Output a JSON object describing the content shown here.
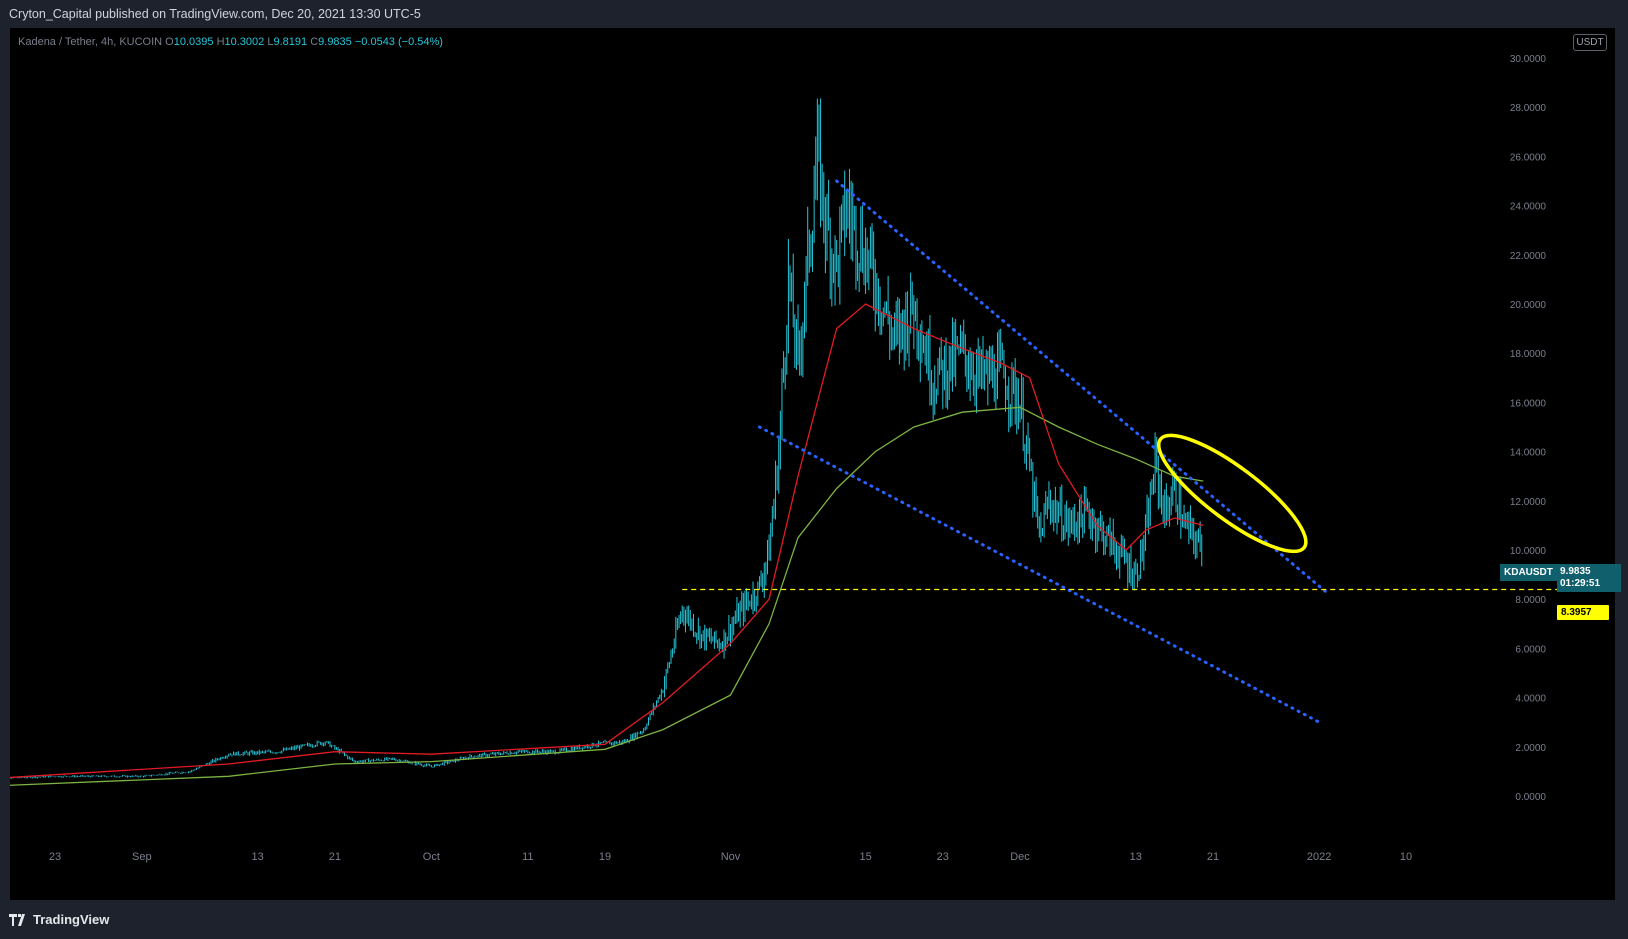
{
  "header": {
    "publisher_line": "Cryton_Capital published on TradingView.com, Dec 20, 2021 13:30 UTC-5"
  },
  "legend": {
    "symbol_desc": "Kadena / Tether, 4h, KUCOIN",
    "o_label": "O",
    "o_value": "10.0395",
    "h_label": "H",
    "h_value": "10.3002",
    "l_label": "L",
    "l_value": "9.8191",
    "c_label": "C",
    "c_value": "9.9835",
    "change": "−0.0543 (−0.54%)"
  },
  "currency": "USDT",
  "tags": {
    "symbol": "KDAUSDT",
    "last_price": "9.9835",
    "countdown": "01:29:51",
    "level": "8.3957"
  },
  "footer": {
    "brand": "TradingView"
  },
  "colors": {
    "background": "#000000",
    "candle": "#26c6da",
    "ma_fast": "#e01b24",
    "ma_slow": "#7cb342",
    "trendline": "#2962ff",
    "support": "#ffff00",
    "highlight": "#ffff00"
  },
  "chart_data": {
    "type": "line",
    "title": "",
    "xlabel": "",
    "ylabel": "",
    "y_ticks": [
      "0.0000",
      "2.0000",
      "4.0000",
      "6.0000",
      "8.0000",
      "10.0000",
      "12.0000",
      "14.0000",
      "16.0000",
      "18.0000",
      "20.0000",
      "22.0000",
      "24.0000",
      "26.0000",
      "28.0000",
      "30.0000"
    ],
    "ylim": [
      -0.8,
      30.0
    ],
    "x_ticks": [
      "23",
      "Sep",
      "13",
      "21",
      "Oct",
      "11",
      "19",
      "Nov",
      "15",
      "23",
      "Dec",
      "13",
      "21",
      "2022",
      "10"
    ],
    "x_tick_dates": [
      "2021-08-23",
      "2021-09-01",
      "2021-09-13",
      "2021-09-21",
      "2021-10-01",
      "2021-10-11",
      "2021-10-19",
      "2021-11-01",
      "2021-11-15",
      "2021-11-23",
      "2021-12-01",
      "2021-12-13",
      "2021-12-21",
      "2022-01-01",
      "2022-01-10"
    ],
    "price_series": {
      "name": "",
      "x": [
        "2021-08-16",
        "2021-08-23",
        "2021-09-01",
        "2021-09-06",
        "2021-09-10",
        "2021-09-15",
        "2021-09-20",
        "2021-09-23",
        "2021-09-27",
        "2021-10-01",
        "2021-10-05",
        "2021-10-10",
        "2021-10-14",
        "2021-10-18",
        "2021-10-21",
        "2021-10-23",
        "2021-10-25",
        "2021-10-27",
        "2021-10-29",
        "2021-10-31",
        "2021-11-02",
        "2021-11-04",
        "2021-11-05",
        "2021-11-06",
        "2021-11-07",
        "2021-11-08",
        "2021-11-10",
        "2021-11-11",
        "2021-11-12",
        "2021-11-13",
        "2021-11-15",
        "2021-11-16",
        "2021-11-18",
        "2021-11-20",
        "2021-11-22",
        "2021-11-25",
        "2021-11-27",
        "2021-11-29",
        "2021-12-01",
        "2021-12-03",
        "2021-12-04",
        "2021-12-06",
        "2021-12-08",
        "2021-12-10",
        "2021-12-12",
        "2021-12-13",
        "2021-12-14",
        "2021-12-15",
        "2021-12-16",
        "2021-12-17",
        "2021-12-18",
        "2021-12-19",
        "2021-12-20"
      ],
      "values": [
        0.7,
        0.8,
        0.8,
        1.0,
        1.7,
        1.8,
        2.2,
        1.4,
        1.5,
        1.2,
        1.6,
        1.8,
        1.8,
        2.1,
        2.2,
        2.7,
        4.4,
        7.6,
        6.5,
        6.2,
        7.5,
        8.5,
        10.0,
        14.0,
        21.0,
        17.5,
        26.0,
        23.0,
        21.5,
        24.0,
        22.0,
        21.0,
        18.5,
        20.0,
        17.0,
        18.0,
        17.0,
        17.2,
        16.0,
        10.5,
        12.0,
        11.0,
        11.5,
        10.5,
        9.5,
        9.0,
        10.5,
        13.5,
        11.5,
        12.5,
        11.0,
        10.5,
        9.98
      ]
    },
    "ma_fast": {
      "name": "",
      "x": [
        "2021-08-16",
        "2021-09-10",
        "2021-09-21",
        "2021-10-01",
        "2021-10-19",
        "2021-10-25",
        "2021-11-01",
        "2021-11-05",
        "2021-11-08",
        "2021-11-12",
        "2021-11-15",
        "2021-11-20",
        "2021-11-25",
        "2021-11-29",
        "2021-12-02",
        "2021-12-05",
        "2021-12-09",
        "2021-12-12",
        "2021-12-14",
        "2021-12-17",
        "2021-12-20"
      ],
      "values": [
        0.7,
        1.3,
        1.8,
        1.7,
        2.1,
        3.8,
        6.2,
        8.0,
        13.0,
        19.0,
        20.0,
        19.0,
        18.2,
        17.6,
        17.0,
        13.5,
        11.0,
        10.0,
        10.8,
        11.3,
        11.0
      ]
    },
    "ma_slow": {
      "name": "",
      "x": [
        "2021-08-16",
        "2021-09-10",
        "2021-09-21",
        "2021-10-01",
        "2021-10-19",
        "2021-10-25",
        "2021-11-01",
        "2021-11-05",
        "2021-11-08",
        "2021-11-12",
        "2021-11-16",
        "2021-11-20",
        "2021-11-25",
        "2021-12-01",
        "2021-12-05",
        "2021-12-09",
        "2021-12-13",
        "2021-12-17",
        "2021-12-20"
      ],
      "values": [
        0.4,
        0.8,
        1.3,
        1.4,
        1.9,
        2.7,
        4.1,
        7.0,
        10.5,
        12.5,
        14.0,
        15.0,
        15.6,
        15.8,
        15.0,
        14.3,
        13.7,
        13.0,
        12.8
      ]
    },
    "annotations": {
      "upper_trendline": {
        "from": [
          "2021-11-12",
          25.0
        ],
        "to": [
          "2022-01-02",
          8.2
        ]
      },
      "lower_trendline": {
        "from": [
          "2021-11-04",
          15.0
        ],
        "to": [
          "2022-01-01",
          3.0
        ]
      },
      "support_level": 8.3957,
      "highlight_ellipse": {
        "center": [
          "2021-12-23",
          12.3
        ]
      }
    }
  }
}
